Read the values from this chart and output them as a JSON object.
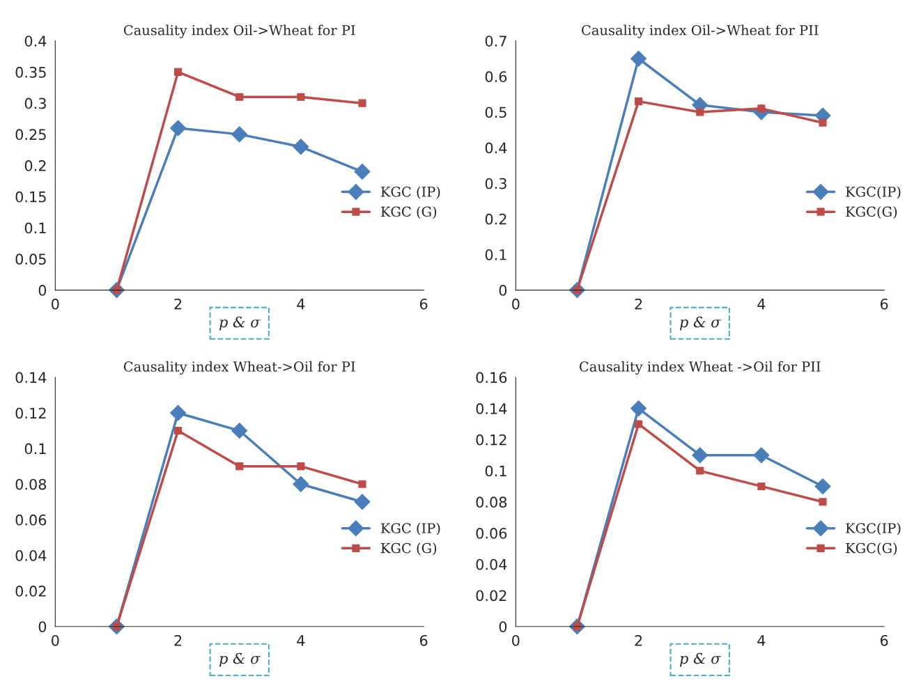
{
  "chart_data": [
    {
      "type": "line",
      "title": "Causality index Oil->Wheat for PI",
      "xlabel": "p & σ",
      "x": [
        1,
        2,
        3,
        4,
        5
      ],
      "xlim": [
        0,
        6
      ],
      "xticks": [
        0,
        2,
        4,
        6
      ],
      "ylim": [
        0,
        0.4
      ],
      "yticks": [
        0,
        0.05,
        0.1,
        0.15,
        0.2,
        0.25,
        0.3,
        0.35,
        0.4
      ],
      "grid": false,
      "legend": "right",
      "series": [
        {
          "name": "KGC (IP)",
          "color": "#4a7ebb",
          "marker": "diamond",
          "values": [
            0,
            0.26,
            0.25,
            0.23,
            0.19
          ]
        },
        {
          "name": "KGC (G)",
          "color": "#be4b48",
          "marker": "square",
          "values": [
            0,
            0.35,
            0.31,
            0.31,
            0.3
          ]
        }
      ]
    },
    {
      "type": "line",
      "title": "Causality index Oil->Wheat for PII",
      "xlabel": "p & σ",
      "x": [
        1,
        2,
        3,
        4,
        5
      ],
      "xlim": [
        0,
        6
      ],
      "xticks": [
        0,
        2,
        4,
        6
      ],
      "ylim": [
        0,
        0.7
      ],
      "yticks": [
        0,
        0.1,
        0.2,
        0.3,
        0.4,
        0.5,
        0.6,
        0.7
      ],
      "grid": false,
      "legend": "right",
      "series": [
        {
          "name": "KGC(IP)",
          "color": "#4a7ebb",
          "marker": "diamond",
          "values": [
            0,
            0.65,
            0.52,
            0.5,
            0.49
          ]
        },
        {
          "name": "KGC(G)",
          "color": "#be4b48",
          "marker": "square",
          "values": [
            0,
            0.53,
            0.5,
            0.51,
            0.47
          ]
        }
      ]
    },
    {
      "type": "line",
      "title": "Causality index Wheat->Oil for PI",
      "xlabel": "p & σ",
      "x": [
        1,
        2,
        3,
        4,
        5
      ],
      "xlim": [
        0,
        6
      ],
      "xticks": [
        0,
        2,
        4,
        6
      ],
      "ylim": [
        0,
        0.14
      ],
      "yticks": [
        0,
        0.02,
        0.04,
        0.06,
        0.08,
        0.1,
        0.12,
        0.14
      ],
      "grid": false,
      "legend": "right",
      "series": [
        {
          "name": "KGC (IP)",
          "color": "#4a7ebb",
          "marker": "diamond",
          "values": [
            0,
            0.12,
            0.11,
            0.08,
            0.07
          ]
        },
        {
          "name": "KGC (G)",
          "color": "#be4b48",
          "marker": "square",
          "values": [
            0,
            0.11,
            0.09,
            0.09,
            0.08
          ]
        }
      ]
    },
    {
      "type": "line",
      "title": "Causality index Wheat ->Oil for PII",
      "xlabel": "p & σ",
      "x": [
        1,
        2,
        3,
        4,
        5
      ],
      "xlim": [
        0,
        6
      ],
      "xticks": [
        0,
        2,
        4,
        6
      ],
      "ylim": [
        0,
        0.16
      ],
      "yticks": [
        0,
        0.02,
        0.04,
        0.06,
        0.08,
        0.1,
        0.12,
        0.14,
        0.16
      ],
      "grid": false,
      "legend": "right",
      "series": [
        {
          "name": "KGC(IP)",
          "color": "#4a7ebb",
          "marker": "diamond",
          "values": [
            0,
            0.14,
            0.11,
            0.11,
            0.09
          ]
        },
        {
          "name": "KGC(G)",
          "color": "#be4b48",
          "marker": "square",
          "values": [
            0,
            0.13,
            0.1,
            0.09,
            0.08
          ]
        }
      ]
    }
  ]
}
